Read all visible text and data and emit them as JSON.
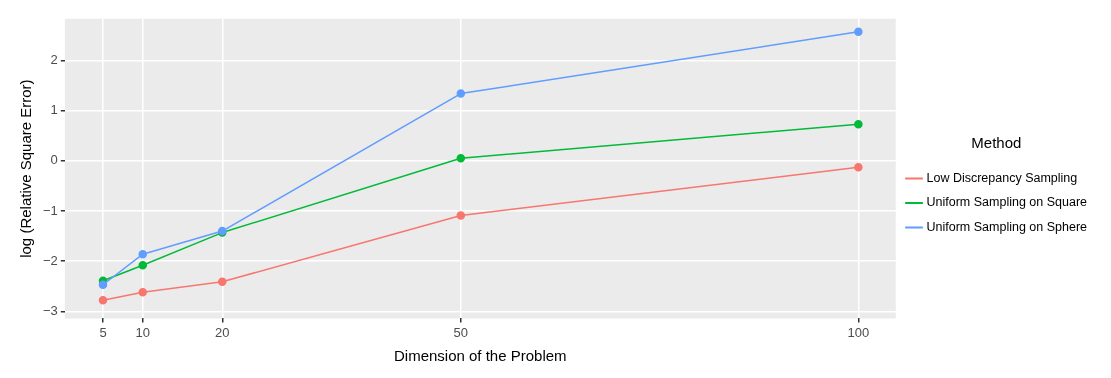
{
  "chart_data": {
    "type": "line",
    "xlabel": "Dimension of the Problem",
    "ylabel": "log (Relative Square Error)",
    "legend_title": "Method",
    "x": [
      5,
      10,
      20,
      50,
      100
    ],
    "series": [
      {
        "name": "Low Discrepancy Sampling",
        "color": "#f8766d",
        "values": [
          -2.78,
          -2.62,
          -2.41,
          -1.09,
          -0.13
        ]
      },
      {
        "name": "Uniform Sampling on Square",
        "color": "#00ba38",
        "values": [
          -2.39,
          -2.08,
          -1.43,
          0.05,
          0.73
        ]
      },
      {
        "name": "Uniform Sampling on Sphere",
        "color": "#619cff",
        "values": [
          -2.47,
          -1.86,
          -1.4,
          1.34,
          2.57
        ]
      }
    ],
    "xlim": [
      0.2,
      104.7
    ],
    "xticks": [
      5,
      10,
      20,
      50,
      100
    ],
    "ylim": [
      -3.14,
      2.83
    ],
    "yticks": [
      -3,
      -2,
      -1,
      0,
      1,
      2
    ],
    "grid": true,
    "legend": "right",
    "marker": "circle",
    "line_style": "solid"
  }
}
